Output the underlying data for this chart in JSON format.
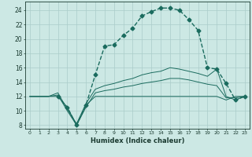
{
  "xlabel": "Humidex (Indice chaleur)",
  "bg_color": "#cce8e4",
  "grid_color": "#aaccca",
  "line_color": "#1a6b5e",
  "xlim": [
    -0.5,
    23.5
  ],
  "ylim": [
    7.5,
    25.2
  ],
  "xticks": [
    0,
    1,
    2,
    3,
    4,
    5,
    6,
    7,
    8,
    9,
    10,
    11,
    12,
    13,
    14,
    15,
    16,
    17,
    18,
    19,
    20,
    21,
    22,
    23
  ],
  "yticks": [
    8,
    10,
    12,
    14,
    16,
    18,
    20,
    22,
    24
  ],
  "main_x": [
    3,
    4,
    5,
    6,
    7,
    8,
    9,
    10,
    11,
    12,
    13,
    14,
    15,
    16,
    17,
    18,
    19,
    20,
    21,
    22,
    23
  ],
  "main_y": [
    12,
    10.5,
    8,
    10.8,
    15.0,
    19.0,
    19.2,
    20.5,
    21.5,
    23.2,
    23.8,
    24.3,
    24.3,
    24.0,
    22.7,
    21.2,
    16.0,
    15.8,
    13.8,
    11.5,
    12.0
  ],
  "line1_x": [
    0,
    1,
    2,
    3,
    4,
    5,
    6,
    7,
    8,
    9,
    10,
    11,
    12,
    13,
    14,
    15,
    16,
    17,
    18,
    19,
    20,
    21,
    22,
    23
  ],
  "line1_y": [
    12,
    12,
    12,
    12,
    10.5,
    8.0,
    10.8,
    12.0,
    12.0,
    12.0,
    12.0,
    12.0,
    12.0,
    12.0,
    12.0,
    12.0,
    12.0,
    12.0,
    12.0,
    12.0,
    12.0,
    11.5,
    12.0,
    12.0
  ],
  "line2_x": [
    0,
    1,
    2,
    3,
    4,
    5,
    6,
    7,
    8,
    9,
    10,
    11,
    12,
    13,
    14,
    15,
    16,
    17,
    18,
    19,
    20,
    21,
    22,
    23
  ],
  "line2_y": [
    12,
    12,
    12,
    12.2,
    10.0,
    8.0,
    10.5,
    12.5,
    12.8,
    13.0,
    13.3,
    13.5,
    13.8,
    14.0,
    14.2,
    14.5,
    14.5,
    14.3,
    14.0,
    13.7,
    13.5,
    11.8,
    11.8,
    12.0
  ],
  "line3_x": [
    0,
    1,
    2,
    3,
    4,
    5,
    6,
    7,
    8,
    9,
    10,
    11,
    12,
    13,
    14,
    15,
    16,
    17,
    18,
    19,
    20,
    21,
    22,
    23
  ],
  "line3_y": [
    12,
    12,
    12,
    12.5,
    10.2,
    8.2,
    11.0,
    13.0,
    13.5,
    13.8,
    14.2,
    14.5,
    15.0,
    15.3,
    15.5,
    16.0,
    15.8,
    15.5,
    15.2,
    14.8,
    15.8,
    12.0,
    11.5,
    12.0
  ]
}
